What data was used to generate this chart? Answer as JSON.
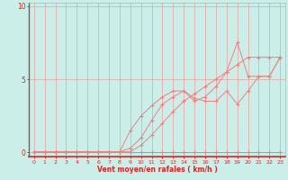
{
  "title": "",
  "xlabel": "Vent moyen/en rafales ( km/h )",
  "ylabel": "",
  "bg_color": "#cceee8",
  "line_color": "#f08080",
  "grid_color": "#e8a0a0",
  "axis_color": "#888888",
  "tick_color": "#dd2222",
  "label_color": "#dd2222",
  "xlim": [
    -0.5,
    23.5
  ],
  "ylim": [
    -0.3,
    10.2
  ],
  "yticks": [
    0,
    5,
    10
  ],
  "xticks": [
    0,
    1,
    2,
    3,
    4,
    5,
    6,
    7,
    8,
    9,
    10,
    11,
    12,
    13,
    14,
    15,
    16,
    17,
    18,
    19,
    20,
    21,
    22,
    23
  ],
  "line1_x": [
    0,
    1,
    2,
    3,
    4,
    5,
    6,
    7,
    8,
    9,
    10,
    11,
    12,
    13,
    14,
    15,
    16,
    17,
    18,
    19,
    20,
    21,
    22,
    23
  ],
  "line1_y": [
    0.05,
    0.05,
    0.05,
    0.05,
    0.05,
    0.05,
    0.05,
    0.05,
    0.05,
    0.05,
    0.05,
    0.05,
    0.05,
    0.05,
    0.05,
    0.05,
    0.05,
    0.05,
    0.05,
    0.05,
    0.05,
    0.05,
    0.05,
    0.05
  ],
  "line2_x": [
    0,
    1,
    2,
    3,
    4,
    5,
    6,
    7,
    8,
    9,
    10,
    11,
    12,
    13,
    14,
    15,
    16,
    17,
    18,
    19,
    20,
    21,
    22,
    23
  ],
  "line2_y": [
    0.05,
    0.05,
    0.05,
    0.05,
    0.05,
    0.05,
    0.05,
    0.05,
    0.05,
    0.3,
    1.0,
    2.2,
    3.3,
    3.8,
    4.2,
    3.7,
    3.5,
    3.5,
    4.2,
    3.3,
    4.2,
    5.2,
    5.2,
    6.5
  ],
  "line3_x": [
    0,
    1,
    2,
    3,
    4,
    5,
    6,
    7,
    8,
    9,
    10,
    11,
    12,
    13,
    14,
    15,
    16,
    17,
    18,
    19,
    20,
    21,
    22,
    23
  ],
  "line3_y": [
    0.05,
    0.05,
    0.05,
    0.05,
    0.05,
    0.05,
    0.05,
    0.05,
    0.05,
    1.5,
    2.5,
    3.2,
    3.8,
    4.2,
    4.2,
    3.5,
    3.8,
    4.5,
    5.5,
    7.5,
    5.2,
    5.2,
    5.2,
    6.5
  ],
  "line4_x": [
    0,
    1,
    2,
    3,
    4,
    5,
    6,
    7,
    8,
    9,
    10,
    11,
    12,
    13,
    14,
    15,
    16,
    17,
    18,
    19,
    20,
    21,
    22,
    23
  ],
  "line4_y": [
    0.05,
    0.05,
    0.05,
    0.05,
    0.05,
    0.05,
    0.05,
    0.05,
    0.05,
    0.05,
    0.5,
    1.2,
    2.0,
    2.8,
    3.5,
    4.0,
    4.5,
    5.0,
    5.5,
    6.0,
    6.5,
    6.5,
    6.5,
    6.5
  ],
  "figsize": [
    3.2,
    2.0
  ],
  "dpi": 100
}
